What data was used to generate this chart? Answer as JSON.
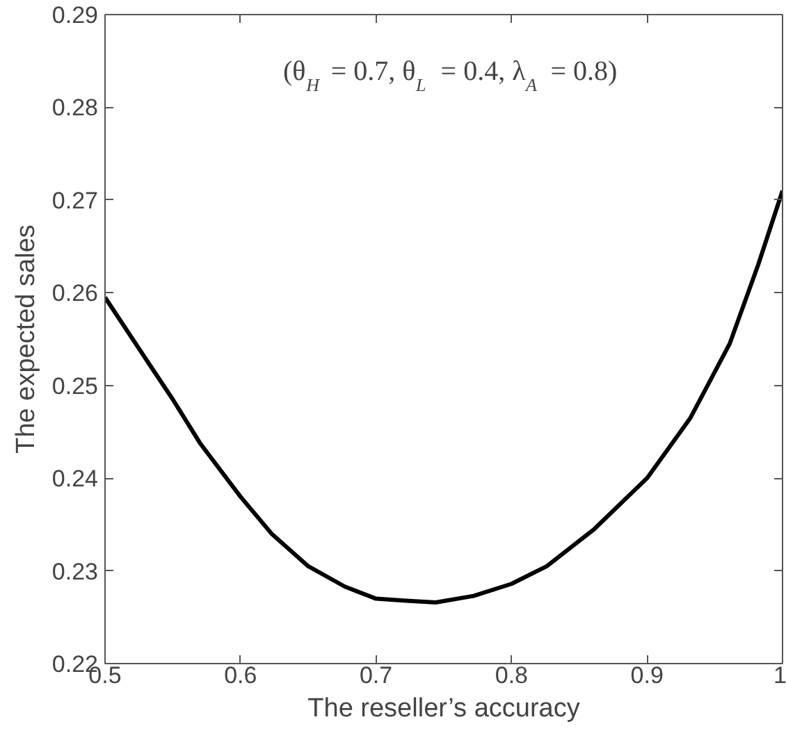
{
  "chart_data": {
    "type": "line",
    "xlabel": "The reseller’s accuracy",
    "ylabel": "The expected sales",
    "annotations": [
      "(θ$_{H}$ = 0.7, θ$_{L}$ = 0.4, λ$_{A}$ = 0.8)"
    ],
    "series": [
      {
        "color": "#000000",
        "x": [
          0.5,
          0.534,
          0.55,
          0.57,
          0.6,
          0.623,
          0.65,
          0.677,
          0.7,
          0.72,
          0.744,
          0.772,
          0.8,
          0.826,
          0.861,
          0.9,
          0.932,
          0.961,
          0.982,
          1.0
        ],
        "values": [
          0.2595,
          0.252,
          0.2485,
          0.2438,
          0.238,
          0.234,
          0.2305,
          0.2283,
          0.227,
          0.2268,
          0.2266,
          0.2273,
          0.2286,
          0.2305,
          0.2345,
          0.24,
          0.2465,
          0.2545,
          0.263,
          0.271
        ]
      }
    ],
    "xlim": [
      0.5,
      1.0
    ],
    "ylim": [
      0.22,
      0.29
    ],
    "xticks": [
      0.5,
      0.6,
      0.7,
      0.8,
      0.9,
      {
        "value": 1.0,
        "label": "1"
      }
    ],
    "yticks": [
      0.22,
      0.23,
      0.24,
      0.25,
      0.26,
      0.27,
      0.28,
      0.29
    ],
    "grid": false,
    "marker": "none",
    "line_style": "solid"
  }
}
